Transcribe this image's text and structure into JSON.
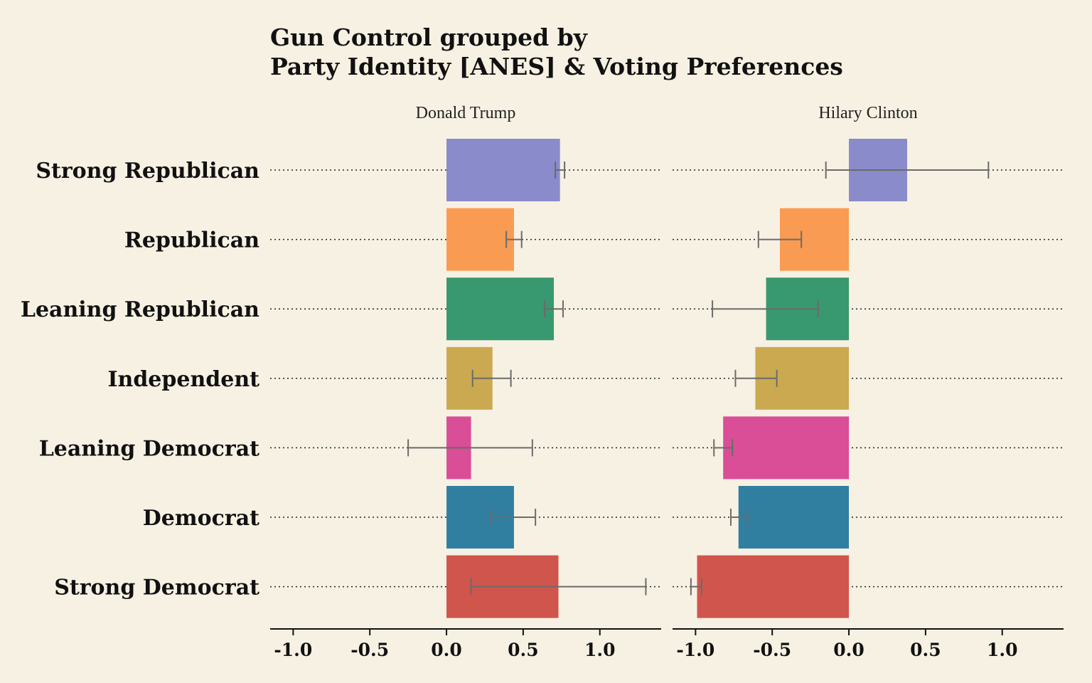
{
  "chart_data": {
    "type": "bar",
    "orientation": "horizontal",
    "title_lines": [
      "Gun Control grouped by",
      "Party Identity [ANES] & Voting Preferences"
    ],
    "categories": [
      "Strong Republican",
      "Republican",
      "Leaning Republican",
      "Independent",
      "Leaning Democrat",
      "Democrat",
      "Strong Democrat"
    ],
    "colors": [
      "#8a8bca",
      "#f99b52",
      "#389870",
      "#caa950",
      "#d94e96",
      "#307fa1",
      "#d0554c"
    ],
    "error_bar_color": "#6b6b6b",
    "xlim": [
      -1.15,
      1.4
    ],
    "x_ticks": [
      "-1.0",
      "-0.5",
      "0.0",
      "0.5",
      "1.0"
    ],
    "x_tick_values": [
      -1.0,
      -0.5,
      0.0,
      0.5,
      1.0
    ],
    "grid": "dotted horizontal",
    "facets": [
      {
        "name": "Donald Trump",
        "values": [
          0.74,
          0.44,
          0.7,
          0.3,
          0.16,
          0.44,
          0.73
        ],
        "err_low": [
          0.71,
          0.39,
          0.64,
          0.17,
          -0.25,
          0.29,
          0.16
        ],
        "err_high": [
          0.77,
          0.49,
          0.76,
          0.42,
          0.56,
          0.58,
          1.3
        ]
      },
      {
        "name": "Hilary Clinton",
        "values": [
          0.38,
          -0.45,
          -0.54,
          -0.61,
          -0.82,
          -0.72,
          -0.99
        ],
        "err_low": [
          -0.15,
          -0.59,
          -0.89,
          -0.74,
          -0.88,
          -0.77,
          -1.03
        ],
        "err_high": [
          0.91,
          -0.31,
          -0.2,
          -0.47,
          -0.76,
          -0.66,
          -0.96
        ]
      }
    ]
  }
}
